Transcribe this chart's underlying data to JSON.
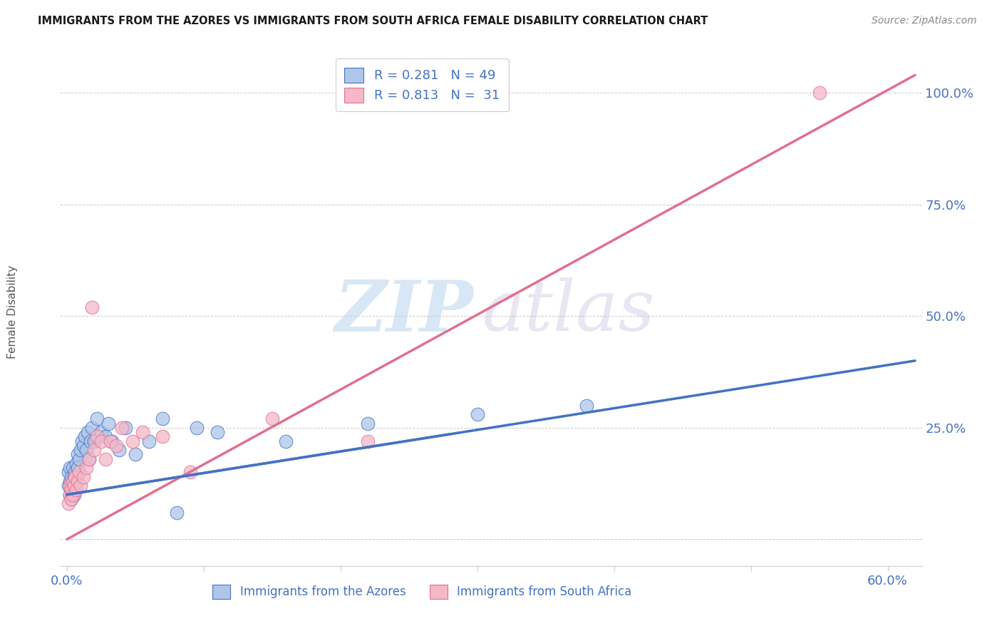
{
  "title": "IMMIGRANTS FROM THE AZORES VS IMMIGRANTS FROM SOUTH AFRICA FEMALE DISABILITY CORRELATION CHART",
  "source": "Source: ZipAtlas.com",
  "ylabel": "Female Disability",
  "y_ticks_right": [
    0.0,
    0.25,
    0.5,
    0.75,
    1.0
  ],
  "y_tick_labels_right": [
    "",
    "25.0%",
    "50.0%",
    "75.0%",
    "100.0%"
  ],
  "xlim": [
    -0.005,
    0.625
  ],
  "ylim": [
    -0.06,
    1.08
  ],
  "azores_R": 0.281,
  "azores_N": 49,
  "sa_R": 0.813,
  "sa_N": 31,
  "legend_label_azores": "Immigrants from the Azores",
  "legend_label_sa": "Immigrants from South Africa",
  "color_azores_fill": "#aec6e8",
  "color_sa_fill": "#f4b8c8",
  "color_azores_edge": "#4472c4",
  "color_sa_edge": "#e07090",
  "color_azores_line": "#4472c4",
  "color_sa_line": "#e07090",
  "color_text": "#4472c4",
  "watermark_zip": "ZIP",
  "watermark_atlas": "atlas",
  "background_color": "#ffffff",
  "grid_color": "#cccccc",
  "azores_x": [
    0.001,
    0.001,
    0.002,
    0.002,
    0.002,
    0.003,
    0.003,
    0.003,
    0.003,
    0.004,
    0.004,
    0.004,
    0.005,
    0.005,
    0.005,
    0.006,
    0.006,
    0.007,
    0.007,
    0.008,
    0.008,
    0.009,
    0.01,
    0.011,
    0.012,
    0.013,
    0.014,
    0.015,
    0.016,
    0.017,
    0.018,
    0.02,
    0.022,
    0.025,
    0.028,
    0.03,
    0.033,
    0.038,
    0.043,
    0.05,
    0.06,
    0.07,
    0.08,
    0.095,
    0.11,
    0.16,
    0.22,
    0.3,
    0.38
  ],
  "azores_y": [
    0.12,
    0.15,
    0.1,
    0.13,
    0.16,
    0.11,
    0.14,
    0.12,
    0.09,
    0.13,
    0.16,
    0.11,
    0.14,
    0.12,
    0.1,
    0.15,
    0.13,
    0.17,
    0.14,
    0.16,
    0.19,
    0.18,
    0.2,
    0.22,
    0.21,
    0.23,
    0.2,
    0.24,
    0.18,
    0.22,
    0.25,
    0.22,
    0.27,
    0.24,
    0.23,
    0.26,
    0.22,
    0.2,
    0.25,
    0.19,
    0.22,
    0.27,
    0.06,
    0.25,
    0.24,
    0.22,
    0.26,
    0.28,
    0.3
  ],
  "sa_x": [
    0.001,
    0.002,
    0.002,
    0.003,
    0.003,
    0.004,
    0.004,
    0.005,
    0.006,
    0.007,
    0.008,
    0.009,
    0.01,
    0.012,
    0.014,
    0.016,
    0.018,
    0.02,
    0.022,
    0.025,
    0.028,
    0.032,
    0.036,
    0.04,
    0.048,
    0.055,
    0.07,
    0.09,
    0.15,
    0.22,
    0.55
  ],
  "sa_y": [
    0.08,
    0.1,
    0.12,
    0.09,
    0.11,
    0.13,
    0.1,
    0.12,
    0.14,
    0.11,
    0.13,
    0.15,
    0.12,
    0.14,
    0.16,
    0.18,
    0.52,
    0.2,
    0.23,
    0.22,
    0.18,
    0.22,
    0.21,
    0.25,
    0.22,
    0.24,
    0.23,
    0.15,
    0.27,
    0.22,
    1.0
  ],
  "azores_line_x": [
    0.0,
    0.62
  ],
  "azores_line_y": [
    0.1,
    0.4
  ],
  "sa_line_x": [
    0.0,
    0.62
  ],
  "sa_line_y": [
    0.0,
    1.04
  ]
}
